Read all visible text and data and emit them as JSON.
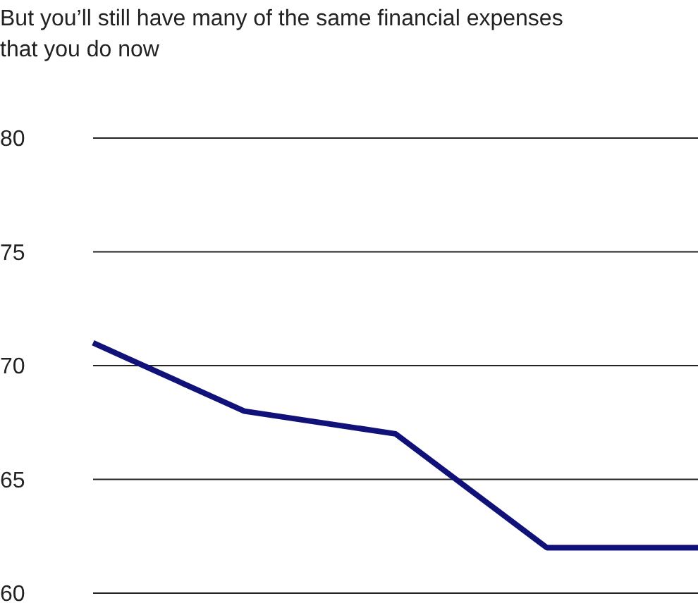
{
  "chart_data": {
    "type": "line",
    "title": "But you’ll still have many of the same financial expenses that you do now",
    "categories": [
      null,
      null,
      null,
      null,
      null
    ],
    "tick_labels": "y",
    "series": [
      {
        "color": "#11117a",
        "values": [
          71,
          68,
          67,
          62,
          62
        ]
      }
    ],
    "ylim": [
      60,
      80
    ],
    "yticks": [
      60,
      65,
      70,
      75,
      80
    ],
    "grid": "y",
    "marker": "none",
    "line_style": "solid"
  }
}
